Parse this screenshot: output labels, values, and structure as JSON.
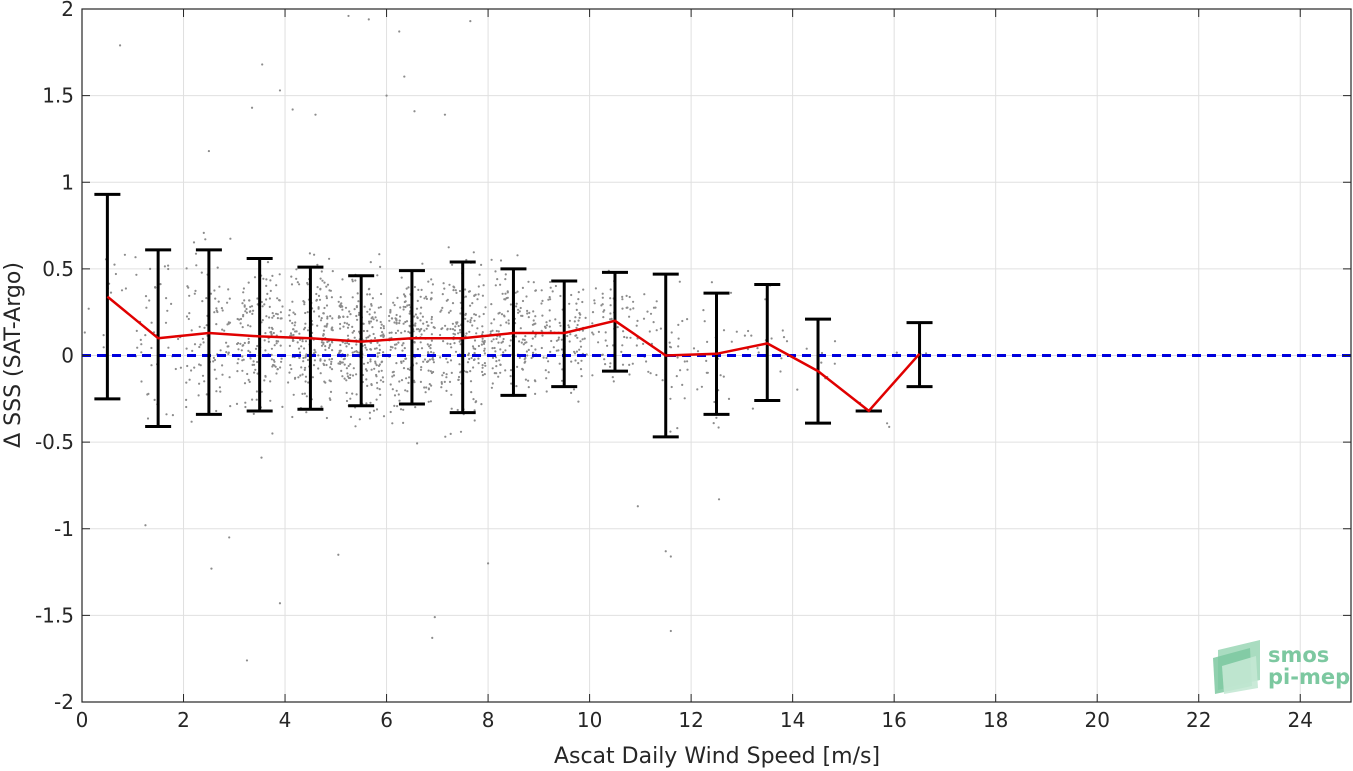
{
  "chart_data": {
    "type": "scatter",
    "title": "",
    "xlabel": "Ascat Daily Wind Speed [m/s]",
    "ylabel": "Δ SSS (SAT-Argo)",
    "xlim": [
      0,
      25
    ],
    "ylim": [
      -2,
      2
    ],
    "xticks": [
      0,
      2,
      4,
      6,
      8,
      10,
      12,
      14,
      16,
      18,
      20,
      22,
      24
    ],
    "yticks": [
      -2,
      -1.5,
      -1,
      -0.5,
      0,
      0.5,
      1,
      1.5,
      2
    ],
    "xtick_labels": [
      "0",
      "2",
      "4",
      "6",
      "8",
      "10",
      "12",
      "14",
      "16",
      "18",
      "20",
      "22",
      "24"
    ],
    "ytick_labels": [
      "-2",
      "-1.5",
      "-1",
      "-0.5",
      "0",
      "0.5",
      "1",
      "1.5",
      "2"
    ],
    "grid": true,
    "zero_line": {
      "y": 0,
      "color": "#0000dd",
      "style": "dashed"
    },
    "series": [
      {
        "kind": "binned-mean",
        "color": "#e00000",
        "x": [
          0.5,
          1.5,
          2.5,
          3.5,
          4.5,
          5.5,
          6.5,
          7.5,
          8.5,
          9.5,
          10.5,
          11.5,
          12.5,
          13.5,
          14.5,
          15.5,
          16.5
        ],
        "y": [
          0.34,
          0.1,
          0.13,
          0.11,
          0.1,
          0.08,
          0.1,
          0.1,
          0.13,
          0.13,
          0.2,
          0.0,
          0.01,
          0.07,
          -0.09,
          -0.32,
          0.01
        ],
        "upper": [
          0.93,
          0.61,
          0.61,
          0.56,
          0.51,
          0.46,
          0.49,
          0.54,
          0.5,
          0.43,
          0.48,
          0.47,
          0.36,
          0.41,
          0.21,
          -0.32,
          0.19
        ],
        "lower": [
          -0.25,
          -0.41,
          -0.34,
          -0.32,
          -0.31,
          -0.29,
          -0.28,
          -0.33,
          -0.23,
          -0.18,
          -0.09,
          -0.47,
          -0.34,
          -0.26,
          -0.39,
          -0.32,
          -0.18
        ],
        "errorbar_color": "#000000"
      }
    ],
    "scatter": {
      "color": "#8c8c8c",
      "description_points": "dense cloud of individual match-ups, mostly between 1 and 13 m/s and between -0.6 and 0.8",
      "outliers": [
        {
          "x": 0.75,
          "y": 1.79
        },
        {
          "x": 5.25,
          "y": 1.96
        },
        {
          "x": 5.65,
          "y": 1.94
        },
        {
          "x": 7.65,
          "y": 1.93
        },
        {
          "x": 6.25,
          "y": 1.87
        },
        {
          "x": 3.55,
          "y": 1.68
        },
        {
          "x": 6.35,
          "y": 1.61
        },
        {
          "x": 6.0,
          "y": 1.5
        },
        {
          "x": 3.35,
          "y": 1.43
        },
        {
          "x": 4.15,
          "y": 1.42
        },
        {
          "x": 6.55,
          "y": 1.41
        },
        {
          "x": 3.9,
          "y": 1.53
        },
        {
          "x": 7.15,
          "y": 1.39
        },
        {
          "x": 4.6,
          "y": 1.39
        },
        {
          "x": 2.5,
          "y": 1.18
        },
        {
          "x": 11.6,
          "y": -1.59
        },
        {
          "x": 6.9,
          "y": -1.63
        },
        {
          "x": 3.25,
          "y": -1.76
        },
        {
          "x": 3.9,
          "y": -1.43
        },
        {
          "x": 6.95,
          "y": -1.51
        },
        {
          "x": 2.55,
          "y": -1.23
        },
        {
          "x": 11.5,
          "y": -1.13
        },
        {
          "x": 11.6,
          "y": -1.16
        },
        {
          "x": 1.25,
          "y": -0.98
        },
        {
          "x": 10.95,
          "y": -0.87
        },
        {
          "x": 12.55,
          "y": -0.83
        },
        {
          "x": 2.9,
          "y": -1.05
        },
        {
          "x": 5.05,
          "y": -1.15
        },
        {
          "x": 8.0,
          "y": -1.2
        }
      ]
    }
  },
  "watermark": {
    "line1": "smos",
    "line2": "pi-mep",
    "color": "#7cc8a0"
  }
}
